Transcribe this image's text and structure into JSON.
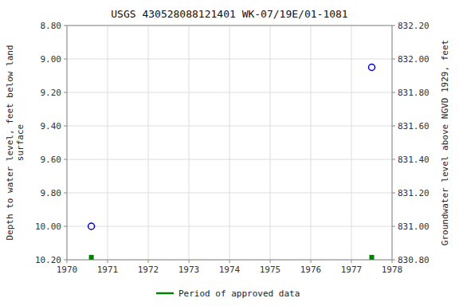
{
  "chart_data": {
    "type": "scatter",
    "title": "USGS 430528088121401 WK-07/19E/01-1081",
    "ylabel": "Depth to water level, feet below land\nsurface",
    "y2label": "Groundwater level above NGVD 1929, feet",
    "xlim": [
      1970,
      1978
    ],
    "xticks": [
      1970,
      1971,
      1972,
      1973,
      1974,
      1975,
      1976,
      1977,
      1978
    ],
    "ylim": [
      10.2,
      8.8
    ],
    "yticks": [
      {
        "value": 8.8,
        "label": "8.80"
      },
      {
        "value": 9.0,
        "label": "9.00"
      },
      {
        "value": 9.2,
        "label": "9.20"
      },
      {
        "value": 9.4,
        "label": "9.40"
      },
      {
        "value": 9.6,
        "label": "9.60"
      },
      {
        "value": 9.8,
        "label": "9.80"
      },
      {
        "value": 10.0,
        "label": "10.00"
      },
      {
        "value": 10.2,
        "label": "10.20"
      }
    ],
    "y2lim": [
      830.8,
      832.2
    ],
    "y2ticks": [
      {
        "value": 832.2,
        "label": "832.20"
      },
      {
        "value": 832.0,
        "label": "832.00"
      },
      {
        "value": 831.8,
        "label": "831.80"
      },
      {
        "value": 831.6,
        "label": "831.60"
      },
      {
        "value": 831.4,
        "label": "831.40"
      },
      {
        "value": 831.2,
        "label": "831.20"
      },
      {
        "value": 831.0,
        "label": "831.00"
      },
      {
        "value": 830.8,
        "label": "830.80"
      }
    ],
    "grid": true,
    "legend": "bottom",
    "series": [
      {
        "color": "#0000cc",
        "marker": "circle",
        "x": [
          1970.6,
          1977.5
        ],
        "values": [
          10.0,
          9.05
        ]
      },
      {
        "name": "Period of approved data",
        "color": "#008000",
        "marker": "square",
        "x": [
          1970.6,
          1977.5
        ],
        "values": [
          10.185,
          10.185
        ]
      }
    ]
  }
}
